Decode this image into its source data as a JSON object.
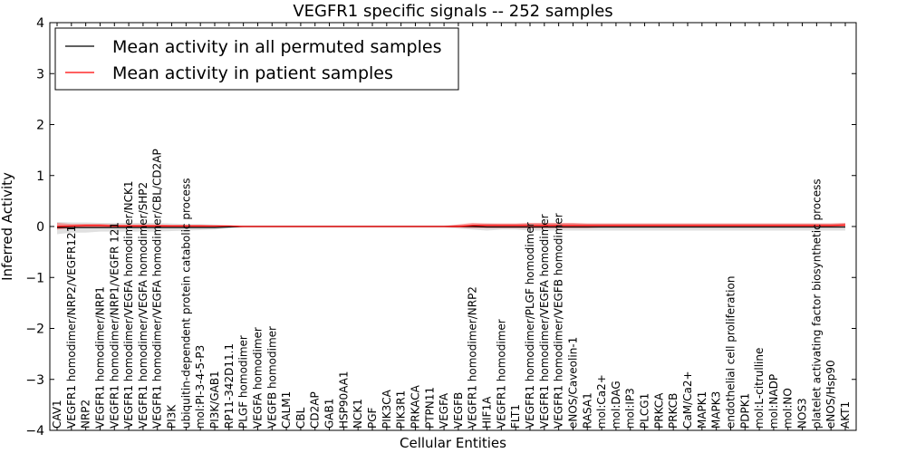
{
  "chart_data": {
    "type": "line",
    "title": "VEGFR1 specific signals -- 252 samples",
    "xlabel": "Cellular Entities",
    "ylabel": "Inferred Activity",
    "ylim": [
      -4,
      4
    ],
    "yticks": [
      -4,
      -3,
      -2,
      -1,
      0,
      1,
      2,
      3,
      4
    ],
    "ytick_labels": [
      "−4",
      "−3",
      "−2",
      "−1",
      "0",
      "1",
      "2",
      "3",
      "4"
    ],
    "grid": false,
    "legend_position": "top-left",
    "categories": [
      "CAV1",
      "VEGFR1 homodimer/NRP2/VEGFR121",
      "NRP2",
      "VEGFR1 homodimer/NRP1",
      "VEGFR1 homodimer/NRP1/VEGFR 121",
      "VEGFR1 homodimer/VEGFA homodimer/NCK1",
      "VEGFR1 homodimer/VEGFA homodimer/SHP2",
      "VEGFR1 homodimer/VEGFA homodimer/CBL/CD2AP",
      "PI3K",
      "ubiquitin-dependent protein catabolic process",
      "mol:PI-3-4-5-P3",
      "PI3K/GAB1",
      "RP11-342D11.1",
      "PLGF homodimer",
      "VEGFA homodimer",
      "VEGFB homodimer",
      "CALM1",
      "CBL",
      "CD2AP",
      "GAB1",
      "HSP90AA1",
      "NCK1",
      "PGF",
      "PIK3CA",
      "PIK3R1",
      "PRKACA",
      "PTPN11",
      "VEGFA",
      "VEGFB",
      "VEGFR1 homodimer/NRP2",
      "HIF1A",
      "VEGFR1 homodimer",
      "FLT1",
      "VEGFR1 homodimer/PLGF homodimer",
      "VEGFR1 homodimer/VEGFA homodimer",
      "VEGFR1 homodimer/VEGFB homodimer",
      "eNOS/Caveolin-1",
      "RASA1",
      "mol:Ca2+",
      "mol:DAG",
      "mol:IP3",
      "PLCG1",
      "PRKCA",
      "PRKCB",
      "CaM/Ca2+",
      "MAPK1",
      "MAPK3",
      "endothelial cell proliferation",
      "PDPK1",
      "mol:L-citrulline",
      "mol:NADP",
      "mol:NO",
      "NOS3",
      "platelet activating factor biosynthetic process",
      "eNOS/Hsp90",
      "AKT1"
    ],
    "series": [
      {
        "name": "Mean activity in all permuted samples",
        "color": "#000000",
        "values": [
          -0.02,
          -0.02,
          -0.02,
          -0.02,
          -0.02,
          -0.02,
          -0.02,
          -0.02,
          -0.02,
          -0.02,
          -0.02,
          -0.02,
          -0.01,
          0,
          0,
          0,
          0,
          0,
          0,
          0,
          0,
          0,
          0,
          0,
          0,
          0,
          0,
          0,
          0,
          0,
          -0.01,
          -0.01,
          -0.01,
          -0.01,
          -0.01,
          -0.01,
          -0.01,
          -0.01,
          -0.01,
          -0.01,
          -0.01,
          -0.01,
          -0.01,
          -0.01,
          -0.01,
          -0.01,
          -0.01,
          -0.01,
          -0.01,
          -0.01,
          -0.01,
          -0.01,
          -0.01,
          -0.01,
          -0.01,
          -0.01
        ],
        "band_lower": [
          -0.15,
          -0.12,
          -0.12,
          -0.1,
          -0.1,
          -0.1,
          -0.1,
          -0.1,
          -0.09,
          -0.08,
          -0.07,
          -0.06,
          -0.03,
          -0.02,
          -0.02,
          -0.02,
          -0.02,
          -0.02,
          -0.02,
          -0.02,
          -0.02,
          -0.02,
          -0.02,
          -0.02,
          -0.02,
          -0.02,
          -0.02,
          -0.02,
          -0.04,
          -0.06,
          -0.08,
          -0.06,
          -0.06,
          -0.08,
          -0.08,
          -0.08,
          -0.08,
          -0.08,
          -0.08,
          -0.08,
          -0.08,
          -0.08,
          -0.08,
          -0.08,
          -0.08,
          -0.08,
          -0.08,
          -0.08,
          -0.08,
          -0.08,
          -0.08,
          -0.08,
          -0.08,
          -0.08,
          -0.08,
          -0.08
        ],
        "band_upper": [
          0.09,
          0.08,
          0.08,
          0.07,
          0.07,
          0.07,
          0.07,
          0.07,
          0.06,
          0.05,
          0.05,
          0.04,
          0.02,
          0.02,
          0.02,
          0.02,
          0.02,
          0.02,
          0.02,
          0.02,
          0.02,
          0.02,
          0.02,
          0.02,
          0.02,
          0.02,
          0.02,
          0.02,
          0.03,
          0.04,
          0.06,
          0.05,
          0.05,
          0.06,
          0.06,
          0.06,
          0.06,
          0.06,
          0.06,
          0.06,
          0.06,
          0.06,
          0.06,
          0.06,
          0.06,
          0.06,
          0.06,
          0.06,
          0.06,
          0.06,
          0.06,
          0.06,
          0.06,
          0.06,
          0.06,
          0.06
        ]
      },
      {
        "name": "Mean activity in patient samples",
        "color": "#ff0000",
        "values": [
          0,
          0.01,
          0.02,
          0.02,
          0.01,
          0.01,
          0.01,
          0.01,
          0.01,
          0.01,
          0.01,
          0.01,
          0.01,
          0,
          0,
          0,
          0,
          0,
          0,
          0,
          0,
          0,
          0,
          0,
          0,
          0,
          0,
          0,
          0,
          0.02,
          0.02,
          0.02,
          0.02,
          0.02,
          0.02,
          0.02,
          0.02,
          0.02,
          0.02,
          0.02,
          0.02,
          0.02,
          0.02,
          0.02,
          0.02,
          0.02,
          0.02,
          0.02,
          0.02,
          0.02,
          0.02,
          0.02,
          0.02,
          0.02,
          0.02,
          0.03
        ],
        "band_lower": [
          -0.06,
          -0.03,
          -0.02,
          -0.02,
          -0.02,
          -0.02,
          -0.02,
          -0.02,
          -0.02,
          -0.02,
          -0.01,
          -0.01,
          -0.01,
          -0.01,
          -0.01,
          -0.01,
          -0.01,
          -0.01,
          -0.01,
          -0.01,
          -0.01,
          -0.01,
          -0.01,
          -0.01,
          -0.01,
          -0.01,
          -0.01,
          -0.01,
          -0.02,
          -0.03,
          -0.03,
          -0.03,
          -0.03,
          -0.03,
          -0.03,
          -0.03,
          -0.03,
          -0.03,
          -0.02,
          -0.02,
          -0.02,
          -0.02,
          -0.02,
          -0.02,
          -0.02,
          -0.02,
          -0.02,
          -0.02,
          -0.02,
          -0.02,
          -0.02,
          -0.02,
          -0.02,
          -0.02,
          -0.02,
          -0.02
        ],
        "band_upper": [
          0.07,
          0.05,
          0.05,
          0.05,
          0.04,
          0.04,
          0.04,
          0.04,
          0.03,
          0.03,
          0.03,
          0.02,
          0.02,
          0.01,
          0.01,
          0.01,
          0.01,
          0.01,
          0.01,
          0.01,
          0.01,
          0.01,
          0.01,
          0.01,
          0.01,
          0.01,
          0.01,
          0.01,
          0.04,
          0.07,
          0.06,
          0.06,
          0.06,
          0.07,
          0.07,
          0.07,
          0.07,
          0.06,
          0.06,
          0.06,
          0.06,
          0.06,
          0.06,
          0.06,
          0.06,
          0.06,
          0.06,
          0.06,
          0.06,
          0.06,
          0.06,
          0.06,
          0.06,
          0.06,
          0.06,
          0.07
        ]
      }
    ]
  }
}
